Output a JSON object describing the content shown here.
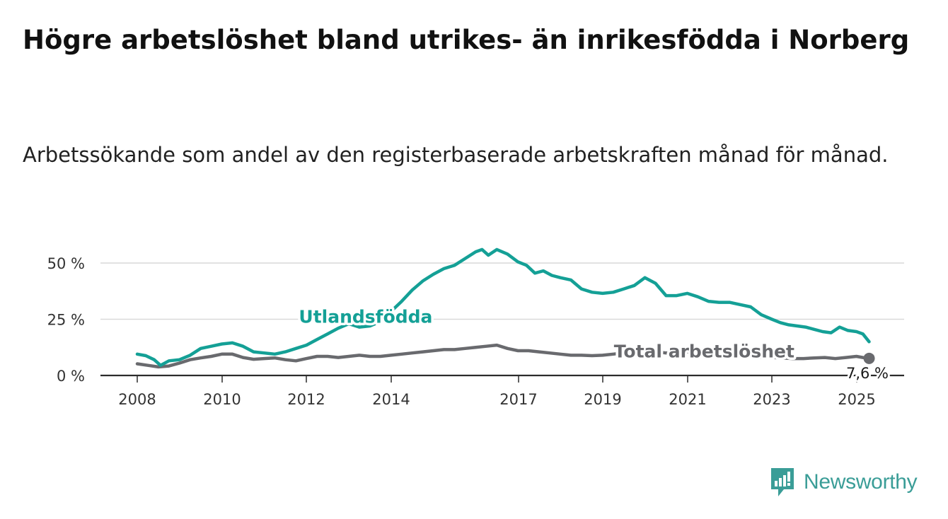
{
  "title": "Högre arbetslöshet bland utrikes- än inrikesfödda i Norberg",
  "subtitle": "Arbetssökande som andel av den registerbaserade arbetskraften månad för månad.",
  "brand": {
    "name": "Newsworthy",
    "icon": "newsworthy-logo-icon",
    "color": "#3a9d97"
  },
  "chart_data": {
    "type": "line",
    "x_ticks": [
      "2008",
      "2010",
      "2012",
      "2014",
      "2017",
      "2019",
      "2021",
      "2023",
      "2025"
    ],
    "y_ticks": [
      "0 %",
      "25 %",
      "50 %"
    ],
    "ylim": [
      0,
      60
    ],
    "xlim": [
      2007.8,
      2025.3
    ],
    "grid": true,
    "end_label": "7,6 %",
    "series": [
      {
        "name": "Utlandsfödda",
        "color": "#14a096",
        "label_year": 2013.4,
        "label_value": 26,
        "points": [
          [
            2008.0,
            9.5
          ],
          [
            2008.2,
            8.8
          ],
          [
            2008.4,
            7.0
          ],
          [
            2008.55,
            4.5
          ],
          [
            2008.75,
            6.5
          ],
          [
            2009.0,
            7.0
          ],
          [
            2009.25,
            9.0
          ],
          [
            2009.5,
            12.0
          ],
          [
            2009.75,
            13.0
          ],
          [
            2010.0,
            14.0
          ],
          [
            2010.25,
            14.5
          ],
          [
            2010.5,
            13.0
          ],
          [
            2010.75,
            10.5
          ],
          [
            2011.0,
            10.0
          ],
          [
            2011.25,
            9.5
          ],
          [
            2011.5,
            10.5
          ],
          [
            2011.75,
            12.0
          ],
          [
            2012.0,
            13.5
          ],
          [
            2012.25,
            16.0
          ],
          [
            2012.5,
            18.5
          ],
          [
            2012.75,
            21.0
          ],
          [
            2013.0,
            23.0
          ],
          [
            2013.25,
            21.5
          ],
          [
            2013.5,
            22.0
          ],
          [
            2013.75,
            24.0
          ],
          [
            2014.0,
            28.5
          ],
          [
            2014.25,
            33.0
          ],
          [
            2014.5,
            38.0
          ],
          [
            2014.75,
            42.0
          ],
          [
            2015.0,
            45.0
          ],
          [
            2015.25,
            47.5
          ],
          [
            2015.5,
            49.0
          ],
          [
            2015.75,
            52.0
          ],
          [
            2016.0,
            55.0
          ],
          [
            2016.15,
            56.0
          ],
          [
            2016.3,
            53.5
          ],
          [
            2016.5,
            56.0
          ],
          [
            2016.75,
            54.0
          ],
          [
            2017.0,
            50.5
          ],
          [
            2017.2,
            49.0
          ],
          [
            2017.4,
            45.5
          ],
          [
            2017.6,
            46.5
          ],
          [
            2017.8,
            44.5
          ],
          [
            2018.0,
            43.5
          ],
          [
            2018.25,
            42.5
          ],
          [
            2018.5,
            38.5
          ],
          [
            2018.75,
            37.0
          ],
          [
            2019.0,
            36.5
          ],
          [
            2019.25,
            37.0
          ],
          [
            2019.5,
            38.5
          ],
          [
            2019.75,
            40.0
          ],
          [
            2020.0,
            43.5
          ],
          [
            2020.25,
            41.0
          ],
          [
            2020.5,
            35.5
          ],
          [
            2020.75,
            35.5
          ],
          [
            2021.0,
            36.5
          ],
          [
            2021.25,
            35.0
          ],
          [
            2021.5,
            33.0
          ],
          [
            2021.75,
            32.5
          ],
          [
            2022.0,
            32.5
          ],
          [
            2022.25,
            31.5
          ],
          [
            2022.5,
            30.5
          ],
          [
            2022.75,
            27.0
          ],
          [
            2023.0,
            25.0
          ],
          [
            2023.2,
            23.5
          ],
          [
            2023.4,
            22.5
          ],
          [
            2023.6,
            22.0
          ],
          [
            2023.8,
            21.5
          ],
          [
            2024.0,
            20.5
          ],
          [
            2024.2,
            19.5
          ],
          [
            2024.4,
            19.0
          ],
          [
            2024.6,
            21.5
          ],
          [
            2024.8,
            20.0
          ],
          [
            2025.0,
            19.5
          ],
          [
            2025.15,
            18.5
          ],
          [
            2025.3,
            15.0
          ]
        ]
      },
      {
        "name": "Total arbetslöshet",
        "color": "#696a6e",
        "label_year": 2021.4,
        "label_value": 10.5,
        "points": [
          [
            2008.0,
            5.2
          ],
          [
            2008.25,
            4.5
          ],
          [
            2008.5,
            3.8
          ],
          [
            2008.75,
            4.2
          ],
          [
            2009.0,
            5.5
          ],
          [
            2009.25,
            7.0
          ],
          [
            2009.5,
            7.8
          ],
          [
            2009.75,
            8.5
          ],
          [
            2010.0,
            9.5
          ],
          [
            2010.25,
            9.5
          ],
          [
            2010.5,
            8.0
          ],
          [
            2010.75,
            7.2
          ],
          [
            2011.0,
            7.5
          ],
          [
            2011.25,
            7.8
          ],
          [
            2011.5,
            7.0
          ],
          [
            2011.75,
            6.5
          ],
          [
            2012.0,
            7.5
          ],
          [
            2012.25,
            8.5
          ],
          [
            2012.5,
            8.5
          ],
          [
            2012.75,
            8.0
          ],
          [
            2013.0,
            8.5
          ],
          [
            2013.25,
            9.0
          ],
          [
            2013.5,
            8.5
          ],
          [
            2013.75,
            8.5
          ],
          [
            2014.0,
            9.0
          ],
          [
            2014.25,
            9.5
          ],
          [
            2014.5,
            10.0
          ],
          [
            2014.75,
            10.5
          ],
          [
            2015.0,
            11.0
          ],
          [
            2015.25,
            11.5
          ],
          [
            2015.5,
            11.5
          ],
          [
            2015.75,
            12.0
          ],
          [
            2016.0,
            12.5
          ],
          [
            2016.25,
            13.0
          ],
          [
            2016.5,
            13.5
          ],
          [
            2016.75,
            12.0
          ],
          [
            2017.0,
            11.0
          ],
          [
            2017.25,
            11.0
          ],
          [
            2017.5,
            10.5
          ],
          [
            2017.75,
            10.0
          ],
          [
            2018.0,
            9.5
          ],
          [
            2018.25,
            9.0
          ],
          [
            2018.5,
            9.0
          ],
          [
            2018.75,
            8.8
          ],
          [
            2019.0,
            9.0
          ],
          [
            2019.25,
            9.5
          ],
          [
            2019.5,
            10.0
          ],
          [
            2019.75,
            10.5
          ],
          [
            2020.0,
            11.0
          ],
          [
            2020.25,
            10.5
          ],
          [
            2020.5,
            10.0
          ],
          [
            2020.75,
            10.2
          ],
          [
            2021.0,
            10.5
          ],
          [
            2021.25,
            10.2
          ],
          [
            2021.5,
            9.8
          ],
          [
            2021.75,
            10.0
          ],
          [
            2022.0,
            10.5
          ],
          [
            2022.25,
            10.0
          ],
          [
            2022.5,
            8.5
          ],
          [
            2022.75,
            8.0
          ],
          [
            2023.0,
            8.0
          ],
          [
            2023.25,
            7.8
          ],
          [
            2023.5,
            7.5
          ],
          [
            2023.75,
            7.5
          ],
          [
            2024.0,
            7.8
          ],
          [
            2024.25,
            8.0
          ],
          [
            2024.5,
            7.5
          ],
          [
            2024.75,
            8.0
          ],
          [
            2025.0,
            8.5
          ],
          [
            2025.15,
            8.0
          ],
          [
            2025.3,
            7.6
          ]
        ]
      }
    ]
  }
}
